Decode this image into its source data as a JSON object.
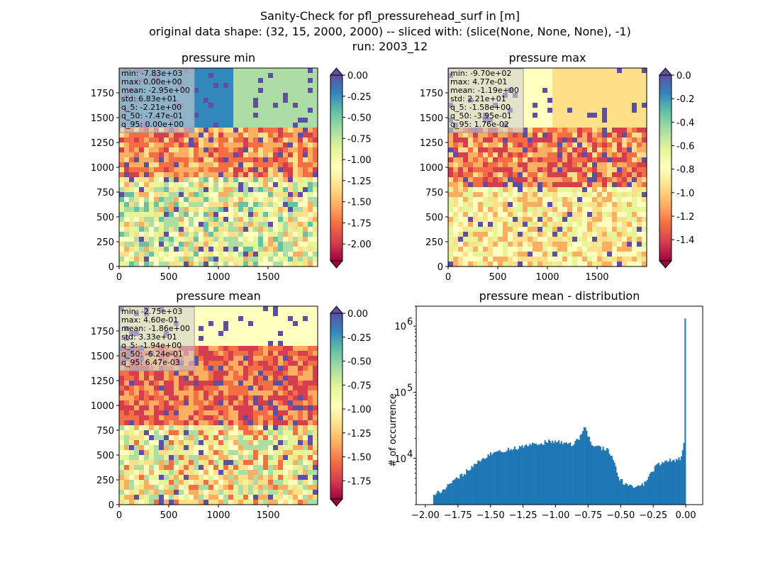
{
  "figure": {
    "title_lines": [
      "Sanity-Check for pfl_pressurehead_surf in [m]",
      "original data shape: (32, 15, 2000, 2000) -- sliced with: (slice(None, None, None), -1)",
      "run: 2003_12"
    ]
  },
  "colormap": {
    "name": "Spectral",
    "stops": [
      "#9e0142",
      "#d53e4f",
      "#f46d43",
      "#fdae61",
      "#fee08b",
      "#ffffbf",
      "#e6f598",
      "#abdda4",
      "#66c2a5",
      "#3288bd",
      "#5e4fa2"
    ]
  },
  "chart_data": [
    {
      "type": "heatmap",
      "title": "pressure min",
      "xticks": [
        "0",
        "500",
        "1000",
        "1500"
      ],
      "yticks": [
        "0",
        "250",
        "500",
        "750",
        "1000",
        "1250",
        "1500",
        "1750"
      ],
      "extent": [
        0,
        2000
      ],
      "colorbar": {
        "vmin": -2.2,
        "vmax": 0.0,
        "extend": "both",
        "ticks": [
          "0.00",
          "-0.25",
          "-0.50",
          "-0.75",
          "-1.00",
          "-1.25",
          "-1.50",
          "-1.75",
          "-2.00"
        ]
      },
      "stats": [
        "min: -7.83e+03",
        "max: 0.00e+00",
        "mean: -2.95e+00",
        "std: 6.83e+01",
        "q_5: -2.21e+00",
        "q_50: -7.47e-01",
        "q_95: 0.00e+00"
      ]
    },
    {
      "type": "heatmap",
      "title": "pressure max",
      "xticks": [
        "0",
        "500",
        "1000",
        "1500"
      ],
      "yticks": [
        "0",
        "250",
        "500",
        "750",
        "1000",
        "1250",
        "1500",
        "1750"
      ],
      "extent": [
        0,
        2000
      ],
      "colorbar": {
        "vmin": -1.58,
        "vmax": 0.0,
        "extend": "both",
        "ticks": [
          "0.0",
          "-0.2",
          "-0.4",
          "-0.6",
          "-0.8",
          "-1.0",
          "-1.2",
          "-1.4"
        ]
      },
      "stats": [
        "min: -9.70e+02",
        "max: 4.77e-01",
        "mean: -1.19e+00",
        "std: 2.21e+01",
        "q_5: -1.58e+00",
        "q_50: -3.95e-01",
        "q_95: 1.76e-02"
      ]
    },
    {
      "type": "heatmap",
      "title": "pressure mean",
      "xticks": [
        "0",
        "500",
        "1000",
        "1500"
      ],
      "yticks": [
        "0",
        "250",
        "500",
        "750",
        "1000",
        "1250",
        "1500",
        "1750"
      ],
      "extent": [
        0,
        2000
      ],
      "colorbar": {
        "vmin": -1.94,
        "vmax": 0.0,
        "extend": "both",
        "ticks": [
          "0.00",
          "-0.25",
          "-0.50",
          "-0.75",
          "-1.00",
          "-1.25",
          "-1.50",
          "-1.75"
        ]
      },
      "stats": [
        "min: -2.75e+03",
        "max: 4.60e-01",
        "mean: -1.86e+00",
        "std: 3.33e+01",
        "q_5: -1.94e+00",
        "q_50: -6.24e-01",
        "q_95: 6.47e-03"
      ]
    },
    {
      "type": "bar",
      "title": "pressure mean - distribution",
      "ylabel": "# of occurrence",
      "yscale": "log",
      "xlim": [
        -2.07,
        0.13
      ],
      "ylim": [
        2000,
        2000000
      ],
      "xticks": [
        -2.0,
        -1.75,
        -1.5,
        -1.25,
        -1.0,
        -0.75,
        -0.5,
        -0.25,
        0.0
      ],
      "xtick_labels": [
        "−2.00",
        "−1.75",
        "−1.50",
        "−1.25",
        "−1.00",
        "−0.75",
        "−0.50",
        "−0.25",
        "0.00"
      ],
      "yticks": [
        10000,
        100000,
        1000000
      ],
      "ytick_labels": [
        "10^4",
        "10^5",
        "10^6"
      ],
      "bar_color": "#1f77b4",
      "bin_start": -1.94,
      "bin_end": 0.0,
      "histogram_profile": [
        [
          -1.94,
          2800
        ],
        [
          -1.85,
          3500
        ],
        [
          -1.75,
          5000
        ],
        [
          -1.62,
          8000
        ],
        [
          -1.5,
          11500
        ],
        [
          -1.35,
          14000
        ],
        [
          -1.25,
          15000
        ],
        [
          -1.15,
          16500
        ],
        [
          -1.05,
          18000
        ],
        [
          -0.98,
          18500
        ],
        [
          -0.93,
          17000
        ],
        [
          -0.87,
          16500
        ],
        [
          -0.82,
          20000
        ],
        [
          -0.78,
          30000
        ],
        [
          -0.75,
          22000
        ],
        [
          -0.72,
          15000
        ],
        [
          -0.66,
          14500
        ],
        [
          -0.6,
          14000
        ],
        [
          -0.55,
          9000
        ],
        [
          -0.51,
          5000
        ],
        [
          -0.47,
          4100
        ],
        [
          -0.4,
          3800
        ],
        [
          -0.33,
          4000
        ],
        [
          -0.28,
          5500
        ],
        [
          -0.22,
          8000
        ],
        [
          -0.15,
          9000
        ],
        [
          -0.08,
          9500
        ],
        [
          -0.03,
          10500
        ],
        [
          -0.01,
          20000
        ],
        [
          -0.003,
          1300000
        ]
      ]
    }
  ]
}
